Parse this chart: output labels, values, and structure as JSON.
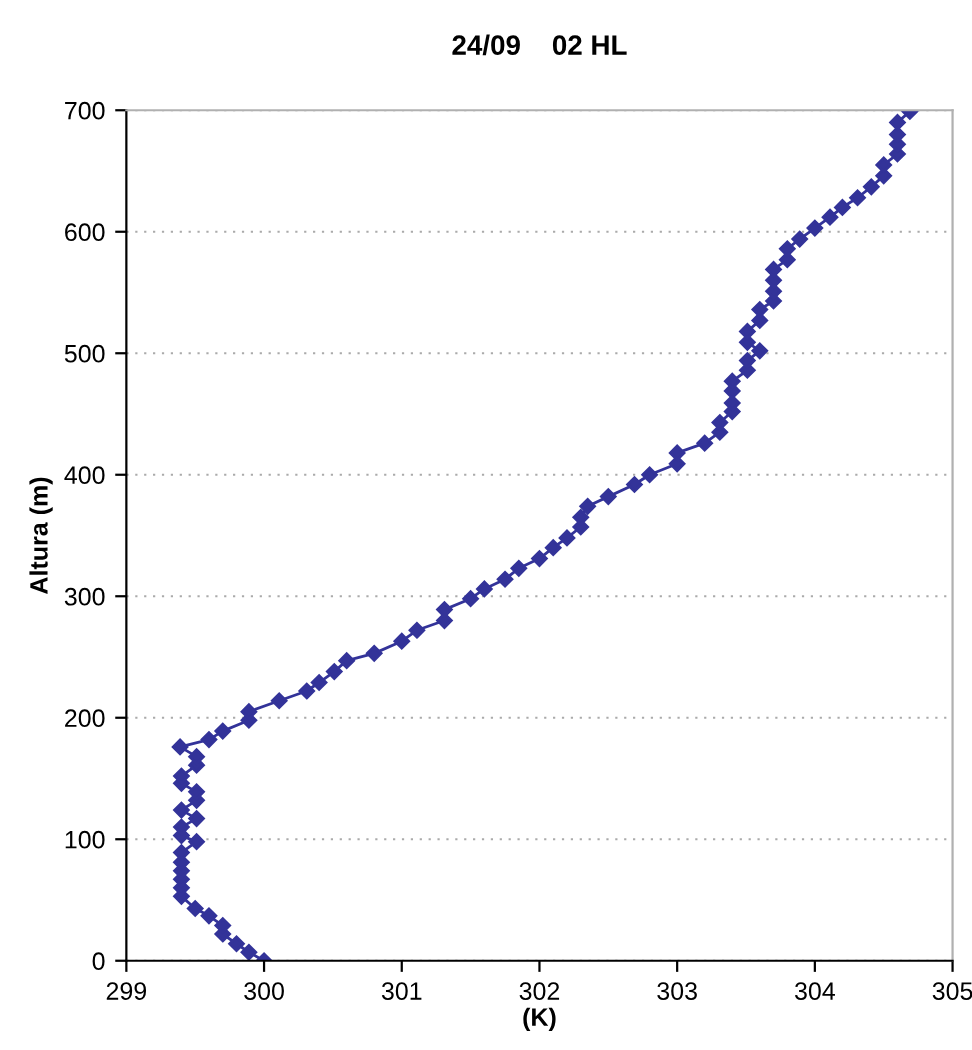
{
  "chart_data": {
    "type": "line",
    "title": "24/09    02 HL",
    "xlabel": "(K)",
    "ylabel": "Altura (m)",
    "xlim": [
      299,
      305
    ],
    "xticks": [
      299,
      300,
      301,
      302,
      303,
      304,
      305
    ],
    "ylim": [
      0,
      700
    ],
    "yticks": [
      0,
      100,
      200,
      300,
      400,
      500,
      600,
      700
    ],
    "grid": "y",
    "marker": "diamond",
    "line_style": "solid",
    "series": [
      {
        "color": "#333399",
        "x": [
          300.0,
          299.89,
          299.8,
          299.7,
          299.7,
          299.6,
          299.5,
          299.4,
          299.4,
          299.4,
          299.4,
          299.4,
          299.4,
          299.51,
          299.4,
          299.4,
          299.51,
          299.4,
          299.51,
          299.51,
          299.4,
          299.4,
          299.51,
          299.51,
          299.39,
          299.6,
          299.7,
          299.89,
          299.89,
          300.11,
          300.31,
          300.4,
          300.51,
          300.6,
          300.8,
          301.0,
          301.11,
          301.31,
          301.31,
          301.5,
          301.6,
          301.75,
          301.85,
          302.0,
          302.1,
          302.2,
          302.3,
          302.3,
          302.35,
          302.5,
          302.69,
          302.8,
          303.0,
          303.0,
          303.2,
          303.31,
          303.31,
          303.4,
          303.4,
          303.4,
          303.4,
          303.51,
          303.51,
          303.6,
          303.51,
          303.51,
          303.6,
          303.6,
          303.7,
          303.7,
          303.7,
          303.7,
          303.8,
          303.8,
          303.89,
          304.0,
          304.11,
          304.2,
          304.31,
          304.41,
          304.5,
          304.5,
          304.6,
          304.6,
          304.6,
          304.6,
          304.69
        ],
        "values": [
          0,
          7,
          14,
          22,
          29,
          37,
          43,
          53,
          60,
          67,
          74,
          81,
          89,
          98,
          103,
          110,
          117,
          124,
          132,
          139,
          146,
          152,
          161,
          168,
          176,
          182,
          189,
          198,
          205,
          214,
          222,
          229,
          238,
          247,
          253,
          263,
          272,
          280,
          289,
          298,
          306,
          314,
          323,
          331,
          340,
          348,
          357,
          365,
          374,
          382,
          392,
          400,
          409,
          418,
          426,
          435,
          443,
          452,
          459,
          469,
          477,
          486,
          494,
          502,
          509,
          518,
          527,
          536,
          543,
          551,
          560,
          569,
          577,
          586,
          594,
          603,
          612,
          620,
          628,
          637,
          646,
          655,
          664,
          672,
          680,
          690,
          699
        ]
      }
    ]
  }
}
